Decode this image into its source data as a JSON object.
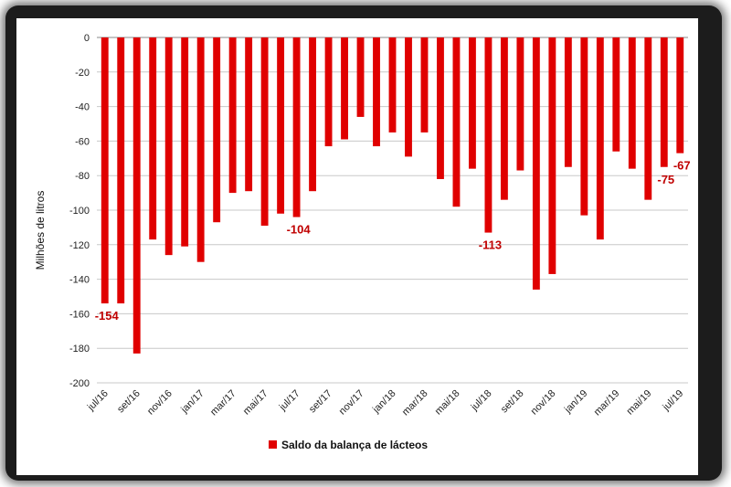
{
  "chart_data": {
    "type": "bar",
    "title": "",
    "ylabel": "Milhões de litros",
    "xlabel": "",
    "ylim": [
      -200,
      0
    ],
    "yticks": [
      0,
      -20,
      -40,
      -60,
      -80,
      -100,
      -120,
      -140,
      -160,
      -180,
      -200
    ],
    "grid": true,
    "legend_position": "bottom",
    "bar_color": "#e00000",
    "categories": [
      "jul/16",
      "ago/16",
      "set/16",
      "out/16",
      "nov/16",
      "dez/16",
      "jan/17",
      "fev/17",
      "mar/17",
      "abr/17",
      "mai/17",
      "jun/17",
      "jul/17",
      "ago/17",
      "set/17",
      "out/17",
      "nov/17",
      "dez/17",
      "jan/18",
      "fev/18",
      "mar/18",
      "abr/18",
      "mai/18",
      "jun/18",
      "jul/18",
      "ago/18",
      "set/18",
      "out/18",
      "nov/18",
      "dez/18",
      "jan/19",
      "fev/19",
      "mar/19",
      "abr/19",
      "mai/19",
      "jun/19",
      "jul/19"
    ],
    "xtick_labels": [
      "jul/16",
      "set/16",
      "nov/16",
      "jan/17",
      "mar/17",
      "mai/17",
      "jul/17",
      "set/17",
      "nov/17",
      "jan/18",
      "mar/18",
      "mai/18",
      "jul/18",
      "set/18",
      "nov/18",
      "jan/19",
      "mar/19",
      "mai/19",
      "jul/19"
    ],
    "series": [
      {
        "name": "Saldo da balança de lácteos",
        "values": [
          -154,
          -154,
          -183,
          -117,
          -126,
          -121,
          -130,
          -107,
          -90,
          -89,
          -109,
          -102,
          -104,
          -89,
          -63,
          -59,
          -46,
          -63,
          -55,
          -69,
          -55,
          -82,
          -98,
          -76,
          -113,
          -94,
          -77,
          -146,
          -137,
          -75,
          -103,
          -117,
          -66,
          -76,
          -94,
          -75,
          -67
        ]
      }
    ],
    "data_labels": [
      {
        "index": 0,
        "text": "-154"
      },
      {
        "index": 12,
        "text": "-104"
      },
      {
        "index": 24,
        "text": "-113"
      },
      {
        "index": 35,
        "text": "-75"
      },
      {
        "index": 36,
        "text": "-67"
      }
    ]
  }
}
